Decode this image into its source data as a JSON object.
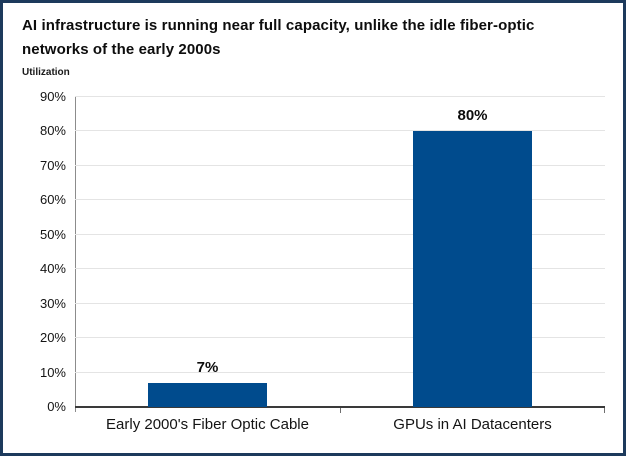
{
  "title": "AI infrastructure is running near full capacity, unlike the idle fiber-optic networks of the early 2000s",
  "chart_data": {
    "type": "bar",
    "title": "AI infrastructure is running near full capacity, unlike the idle fiber-optic networks of the early 2000s",
    "categories": [
      "Early 2000's Fiber Optic Cable",
      "GPUs in AI Datacenters"
    ],
    "values": [
      7,
      80
    ],
    "data_labels": [
      "7%",
      "80%"
    ],
    "xlabel": "",
    "ylabel": "Utilization",
    "ylim": [
      0,
      90
    ],
    "ytick_step": 10,
    "ytick_labels": [
      "0%",
      "10%",
      "20%",
      "30%",
      "40%",
      "50%",
      "60%",
      "70%",
      "80%",
      "90%"
    ],
    "grid": true,
    "legend_position": "none",
    "bar_color": "#004b8d",
    "frame_border_color": "#1d3a5c"
  }
}
